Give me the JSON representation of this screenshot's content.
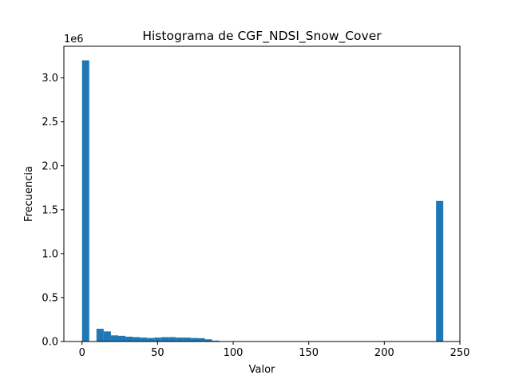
{
  "chart_data": {
    "type": "bar",
    "title": "Histograma de CGF_NDSI_Snow_Cover",
    "xlabel": "Valor",
    "ylabel": "Frecuencia",
    "y_offset_label": "1e6",
    "xlim": [
      -12,
      250
    ],
    "ylim": [
      0,
      3.36
    ],
    "x_ticks": [
      0,
      50,
      100,
      150,
      200,
      250
    ],
    "x_tick_labels": [
      "0",
      "50",
      "100",
      "150",
      "200",
      "250"
    ],
    "y_ticks": [
      0.0,
      0.5,
      1.0,
      1.5,
      2.0,
      2.5,
      3.0
    ],
    "y_tick_labels": [
      "0.0",
      "0.5",
      "1.0",
      "1.5",
      "2.0",
      "2.5",
      "3.0"
    ],
    "bin_width": 4.78,
    "bins": [
      {
        "x": 0,
        "value": 3.2
      },
      {
        "x": 4.78,
        "value": 0
      },
      {
        "x": 9.56,
        "value": 0.145
      },
      {
        "x": 14.34,
        "value": 0.115
      },
      {
        "x": 19.12,
        "value": 0.07
      },
      {
        "x": 23.9,
        "value": 0.065
      },
      {
        "x": 28.68,
        "value": 0.055
      },
      {
        "x": 33.46,
        "value": 0.05
      },
      {
        "x": 38.24,
        "value": 0.045
      },
      {
        "x": 43.02,
        "value": 0.04
      },
      {
        "x": 47.8,
        "value": 0.045
      },
      {
        "x": 52.58,
        "value": 0.05
      },
      {
        "x": 57.36,
        "value": 0.05
      },
      {
        "x": 62.14,
        "value": 0.045
      },
      {
        "x": 66.92,
        "value": 0.045
      },
      {
        "x": 71.7,
        "value": 0.04
      },
      {
        "x": 76.48,
        "value": 0.038
      },
      {
        "x": 81.26,
        "value": 0.025
      },
      {
        "x": 86.04,
        "value": 0.01
      },
      {
        "x": 90.82,
        "value": 0.004
      },
      {
        "x": 95.6,
        "value": 0.002
      },
      {
        "x": 234.22,
        "value": 1.6
      }
    ],
    "bar_color": "#1f77b4",
    "grid": false,
    "legend": "none"
  }
}
